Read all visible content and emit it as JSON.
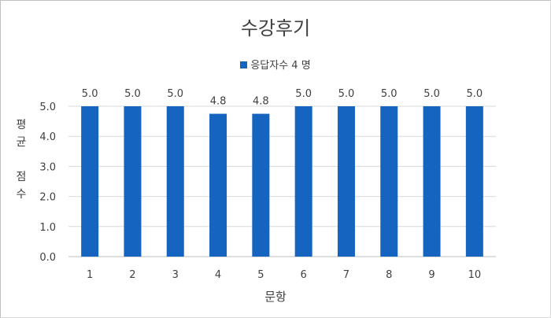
{
  "chart_data": {
    "type": "bar",
    "title": "수강후기",
    "xlabel": "문항",
    "ylabel": "평균 점수",
    "categories": [
      "1",
      "2",
      "3",
      "4",
      "5",
      "6",
      "7",
      "8",
      "9",
      "10"
    ],
    "series": [
      {
        "name": "응답자수 4 명",
        "values": [
          5.0,
          5.0,
          5.0,
          4.75,
          4.75,
          5.0,
          5.0,
          5.0,
          5.0,
          5.0
        ]
      }
    ],
    "data_labels": [
      "5.0",
      "5.0",
      "5.0",
      "4.8",
      "4.8",
      "5.0",
      "5.0",
      "5.0",
      "5.0",
      "5.0"
    ],
    "ylim": [
      0,
      5
    ],
    "yticks": [
      "0.0",
      "1.0",
      "2.0",
      "3.0",
      "4.0",
      "5.0"
    ],
    "grid": true,
    "legend_position": "top",
    "bar_color": "#1565c0",
    "grid_color": "#d9d9d9"
  }
}
